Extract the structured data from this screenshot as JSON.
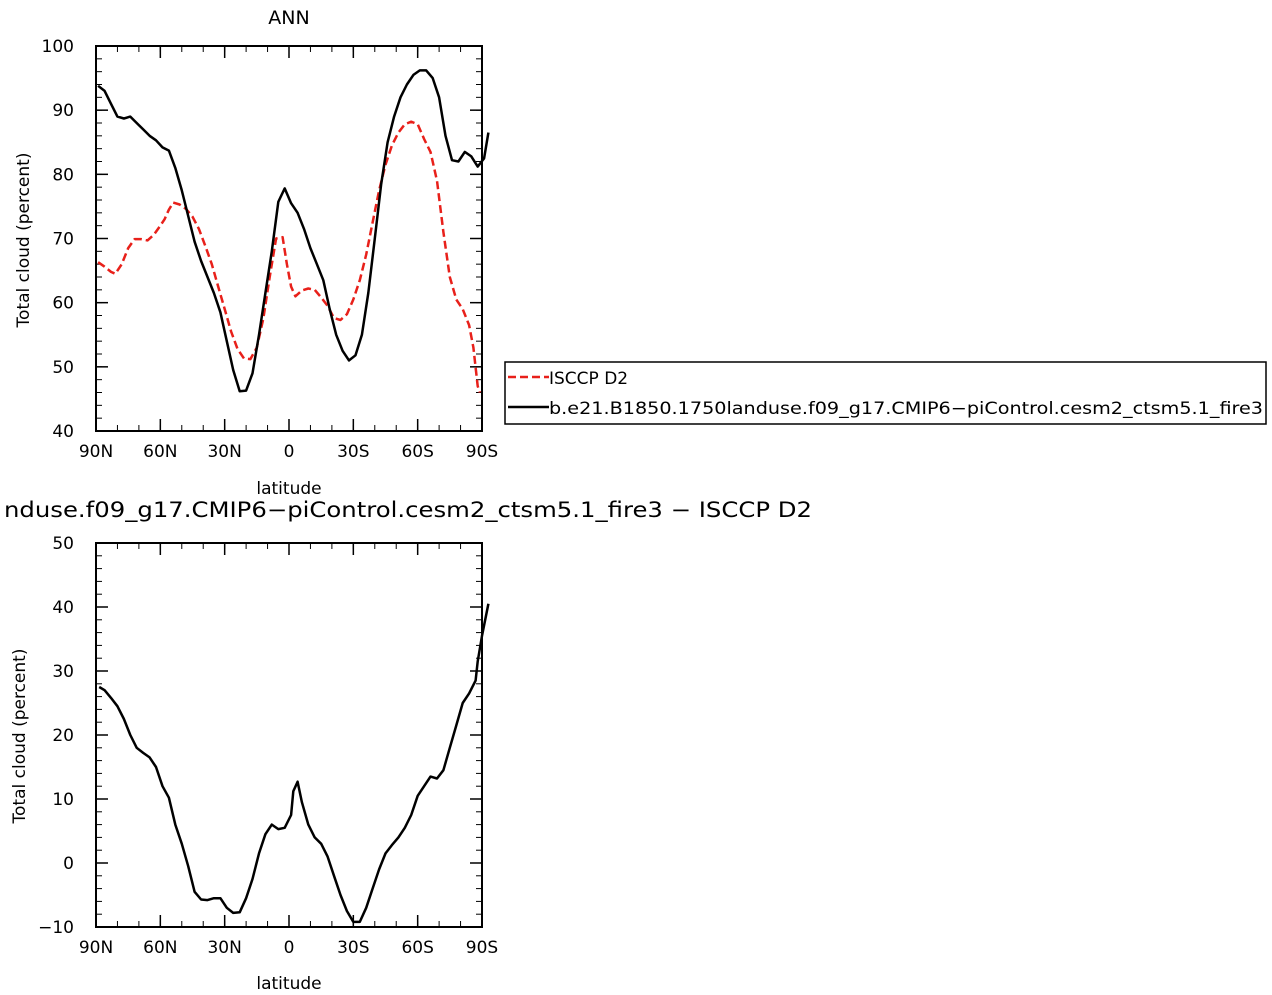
{
  "chart_data": [
    {
      "type": "line",
      "title": "ANN",
      "xlabel": "latitude",
      "ylabel": "Total cloud (percent)",
      "xlim": [
        90,
        -90
      ],
      "ylim": [
        40,
        100
      ],
      "x_ticks": [
        {
          "value": 90,
          "label": "90N"
        },
        {
          "value": 60,
          "label": "60N"
        },
        {
          "value": 30,
          "label": "30N"
        },
        {
          "value": 0,
          "label": "0"
        },
        {
          "value": -30,
          "label": "30S"
        },
        {
          "value": -60,
          "label": "60S"
        },
        {
          "value": -90,
          "label": "90S"
        }
      ],
      "y_ticks": [
        40,
        50,
        60,
        70,
        80,
        90,
        100
      ],
      "legend_position": "right",
      "series": [
        {
          "name": "ISCCP D2",
          "color": "#e8201a",
          "dash": true,
          "points": [
            [
              89,
              66.3
            ],
            [
              86,
              65.6
            ],
            [
              83,
              64.8
            ],
            [
              81,
              64.5
            ],
            [
              78,
              66
            ],
            [
              75,
              68.5
            ],
            [
              72,
              69.9
            ],
            [
              69,
              69.9
            ],
            [
              66,
              69.7
            ],
            [
              63,
              70.6
            ],
            [
              60,
              72
            ],
            [
              58,
              73
            ],
            [
              56,
              74.5
            ],
            [
              54,
              75.6
            ],
            [
              51,
              75.3
            ],
            [
              48,
              74.6
            ],
            [
              45,
              73.4
            ],
            [
              42,
              71.5
            ],
            [
              39,
              68.8
            ],
            [
              36,
              66
            ],
            [
              33,
              62.5
            ],
            [
              30,
              59
            ],
            [
              27,
              55.5
            ],
            [
              24,
              52.8
            ],
            [
              21,
              51.3
            ],
            [
              18,
              51.2
            ],
            [
              15,
              53
            ],
            [
              12,
              57.5
            ],
            [
              9,
              64
            ],
            [
              6,
              70
            ],
            [
              3,
              70.2
            ],
            [
              1,
              66
            ],
            [
              -1,
              62.5
            ],
            [
              -3,
              61
            ],
            [
              -6,
              61.9
            ],
            [
              -9,
              62.2
            ],
            [
              -12,
              62
            ],
            [
              -15,
              60.8
            ],
            [
              -18,
              59.5
            ],
            [
              -21,
              57.6
            ],
            [
              -24,
              57.3
            ],
            [
              -27,
              58.2
            ],
            [
              -30,
              60.5
            ],
            [
              -33,
              63.5
            ],
            [
              -36,
              67.5
            ],
            [
              -39,
              72.5
            ],
            [
              -42,
              77.5
            ],
            [
              -45,
              81.5
            ],
            [
              -48,
              84.5
            ],
            [
              -51,
              86.5
            ],
            [
              -54,
              87.8
            ],
            [
              -57,
              88.2
            ],
            [
              -60,
              87.8
            ],
            [
              -63,
              85.5
            ],
            [
              -66,
              83.5
            ],
            [
              -69,
              79
            ],
            [
              -72,
              71
            ],
            [
              -75,
              64
            ],
            [
              -78,
              60.5
            ],
            [
              -81,
              59
            ],
            [
              -84,
              56.5
            ],
            [
              -86,
              53
            ],
            [
              -88,
              47
            ],
            [
              -89,
              46
            ]
          ]
        },
        {
          "name": "b.e21.B1850.1750landuse.f09_g17.CMIP6−piControl.cesm2_ctsm5.1_fire3",
          "color": "#000000",
          "dash": false,
          "points": [
            [
              89,
              93.8
            ],
            [
              86,
              93
            ],
            [
              83,
              91
            ],
            [
              80,
              89
            ],
            [
              77,
              88.7
            ],
            [
              74,
              89
            ],
            [
              71,
              88
            ],
            [
              68,
              87
            ],
            [
              65,
              86
            ],
            [
              62,
              85.3
            ],
            [
              59,
              84.2
            ],
            [
              56,
              83.7
            ],
            [
              53,
              81
            ],
            [
              50,
              77.5
            ],
            [
              47,
              73.5
            ],
            [
              44,
              69.5
            ],
            [
              41,
              66.5
            ],
            [
              38,
              64
            ],
            [
              35,
              61.5
            ],
            [
              32,
              58.5
            ],
            [
              29,
              54
            ],
            [
              26,
              49.5
            ],
            [
              23,
              46.2
            ],
            [
              20,
              46.3
            ],
            [
              17,
              49
            ],
            [
              14,
              55
            ],
            [
              11,
              61.5
            ],
            [
              8,
              68
            ],
            [
              5,
              75.7
            ],
            [
              2,
              77.8
            ],
            [
              -1,
              75.5
            ],
            [
              -4,
              74
            ],
            [
              -7,
              71.5
            ],
            [
              -10,
              68.5
            ],
            [
              -13,
              66
            ],
            [
              -16,
              63.5
            ],
            [
              -19,
              59
            ],
            [
              -22,
              55
            ],
            [
              -25,
              52.5
            ],
            [
              -28,
              51
            ],
            [
              -31,
              51.8
            ],
            [
              -34,
              55
            ],
            [
              -37,
              61.5
            ],
            [
              -40,
              70
            ],
            [
              -43,
              78.5
            ],
            [
              -46,
              85
            ],
            [
              -49,
              89
            ],
            [
              -52,
              92
            ],
            [
              -55,
              94
            ],
            [
              -58,
              95.5
            ],
            [
              -61,
              96.2
            ],
            [
              -64,
              96.2
            ],
            [
              -67,
              95
            ],
            [
              -70,
              92
            ],
            [
              -73,
              86
            ],
            [
              -76,
              82.2
            ],
            [
              -79,
              82
            ],
            [
              -82,
              83.5
            ],
            [
              -85,
              82.8
            ],
            [
              -88,
              81.2
            ],
            [
              -91,
              82.5
            ],
            [
              -93,
              86.5
            ]
          ]
        }
      ]
    },
    {
      "type": "line",
      "title": "nduse.f09_g17.CMIP6−piControl.cesm2_ctsm5.1_fire3 − ISCCP D2",
      "xlabel": "latitude",
      "ylabel": "Total cloud (percent)",
      "xlim": [
        90,
        -90
      ],
      "ylim": [
        -10,
        50
      ],
      "x_ticks": [
        {
          "value": 90,
          "label": "90N"
        },
        {
          "value": 60,
          "label": "60N"
        },
        {
          "value": 30,
          "label": "30N"
        },
        {
          "value": 0,
          "label": "0"
        },
        {
          "value": -30,
          "label": "30S"
        },
        {
          "value": -60,
          "label": "60S"
        },
        {
          "value": -90,
          "label": "90S"
        }
      ],
      "y_ticks": [
        -10,
        0,
        10,
        20,
        30,
        40,
        50
      ],
      "series": [
        {
          "color": "#000000",
          "dash": false,
          "points": [
            [
              88.5,
              27.5
            ],
            [
              86,
              27
            ],
            [
              83,
              25.8
            ],
            [
              80,
              24.5
            ],
            [
              77,
              22.5
            ],
            [
              74,
              20
            ],
            [
              71,
              18
            ],
            [
              68,
              17.2
            ],
            [
              65,
              16.5
            ],
            [
              62,
              15
            ],
            [
              59,
              12
            ],
            [
              56,
              10.2
            ],
            [
              53,
              6
            ],
            [
              50,
              3
            ],
            [
              47,
              -0.5
            ],
            [
              44,
              -4.5
            ],
            [
              41,
              -5.7
            ],
            [
              38,
              -5.8
            ],
            [
              35,
              -5.5
            ],
            [
              32,
              -5.5
            ],
            [
              29,
              -7
            ],
            [
              26,
              -7.8
            ],
            [
              23,
              -7.7
            ],
            [
              20,
              -5.5
            ],
            [
              17,
              -2.5
            ],
            [
              14,
              1.5
            ],
            [
              11,
              4.5
            ],
            [
              8,
              6
            ],
            [
              5,
              5.3
            ],
            [
              2,
              5.5
            ],
            [
              -1,
              7.5
            ],
            [
              -2,
              11.2
            ],
            [
              -4,
              12.7
            ],
            [
              -6,
              9.5
            ],
            [
              -9,
              6
            ],
            [
              -12,
              4
            ],
            [
              -15,
              3
            ],
            [
              -18,
              1
            ],
            [
              -21,
              -2
            ],
            [
              -24,
              -5
            ],
            [
              -27,
              -7.5
            ],
            [
              -30,
              -9.2
            ],
            [
              -33,
              -9.2
            ],
            [
              -36,
              -7
            ],
            [
              -39,
              -4
            ],
            [
              -42,
              -1
            ],
            [
              -45,
              1.5
            ],
            [
              -48,
              2.8
            ],
            [
              -51,
              4
            ],
            [
              -54,
              5.5
            ],
            [
              -57,
              7.5
            ],
            [
              -60,
              10.5
            ],
            [
              -63,
              12
            ],
            [
              -66,
              13.5
            ],
            [
              -69,
              13.2
            ],
            [
              -72,
              14.5
            ],
            [
              -75,
              18
            ],
            [
              -78,
              21.5
            ],
            [
              -81,
              25
            ],
            [
              -84,
              26.5
            ],
            [
              -87,
              28.5
            ],
            [
              -88,
              31.5
            ],
            [
              -90,
              35.5
            ],
            [
              -93,
              40.5
            ]
          ]
        }
      ]
    }
  ]
}
